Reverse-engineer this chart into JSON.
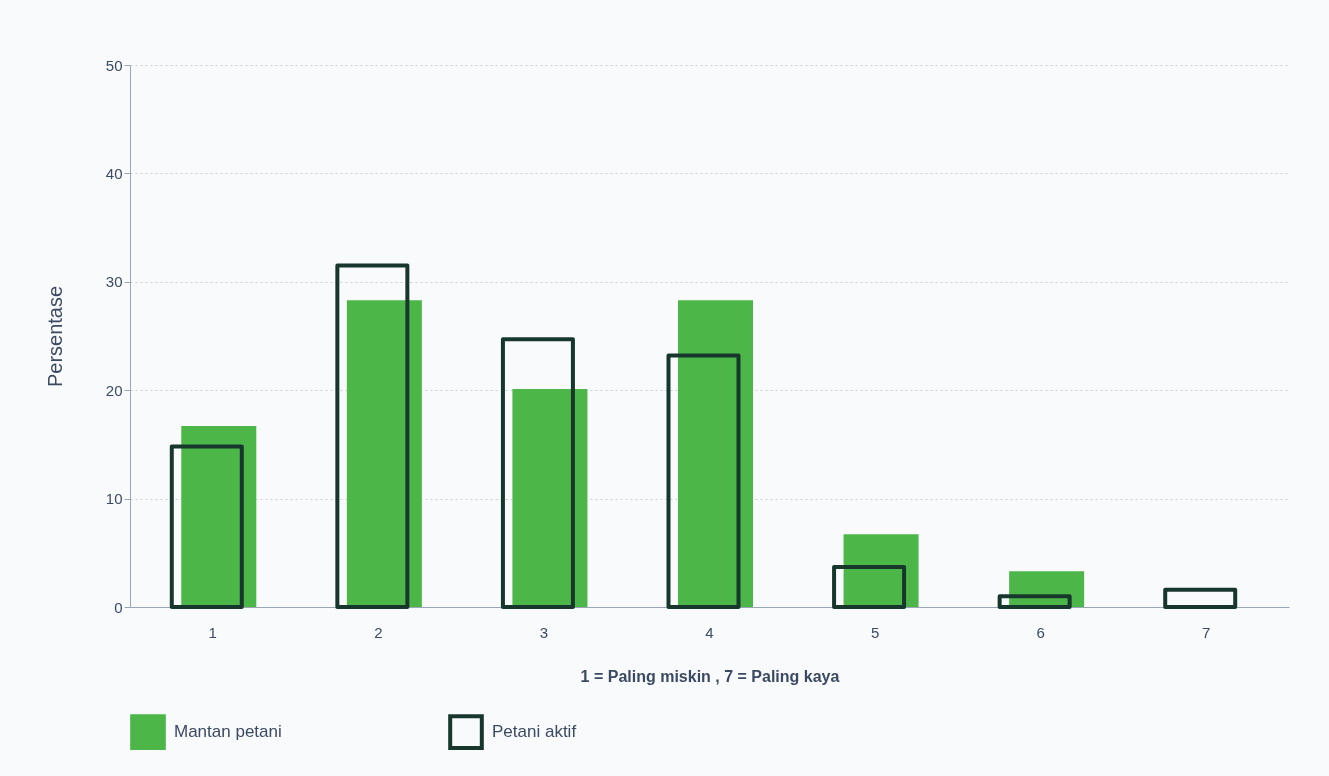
{
  "chart_data": {
    "type": "bar",
    "xlabel": "1 = Paling miskin , 7 = Paling kaya",
    "ylabel": "Persentase",
    "categories": [
      "1",
      "2",
      "3",
      "4",
      "5",
      "6",
      "7"
    ],
    "series": [
      {
        "name": "Mantan petani",
        "color": "#4cb648",
        "values": [
          16.7,
          28.3,
          20.1,
          28.3,
          6.7,
          3.3,
          0
        ]
      },
      {
        "name": "Petani aktif",
        "color": "#17372d",
        "values": [
          14.8,
          31.5,
          24.7,
          23.2,
          3.7,
          1.0,
          1.6
        ]
      }
    ],
    "ylim": [
      0,
      50
    ],
    "yticks": [
      0,
      10,
      20,
      30,
      40,
      50
    ],
    "grid": "y",
    "legend": "bottom"
  }
}
